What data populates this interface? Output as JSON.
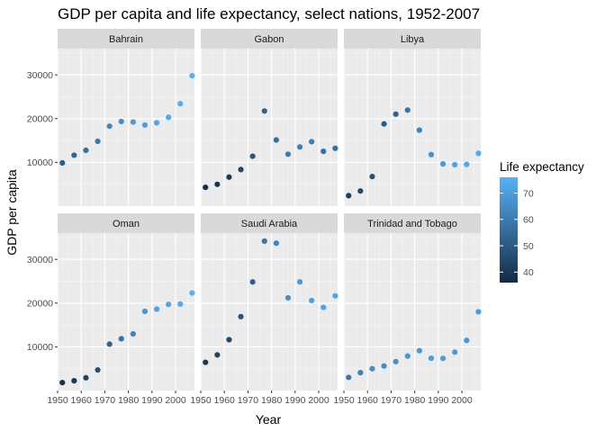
{
  "chart_data": {
    "type": "scatter",
    "title": "GDP per capita and life expectancy, select nations, 1952-2007",
    "xlabel": "Year",
    "ylabel": "GDP per capita",
    "xlim": [
      1950,
      2008
    ],
    "ylim": [
      0,
      36000
    ],
    "x_ticks": [
      1950,
      1960,
      1970,
      1980,
      1990,
      2000
    ],
    "x_tick_labels": [
      "1950",
      "1960",
      "1970",
      "1980",
      "1990",
      "2000"
    ],
    "y_ticks": [
      10000,
      20000,
      30000
    ],
    "y_tick_labels": [
      "10000",
      "20000",
      "30000"
    ],
    "grid": true,
    "facet_rows": 2,
    "facet_cols": 3,
    "color_scale": {
      "title": "Life expectancy",
      "min": 36,
      "max": 76,
      "low_color": "#132B43",
      "high_color": "#56B1F7",
      "ticks": [
        40,
        50,
        60,
        70
      ],
      "tick_labels": [
        "40",
        "50",
        "60",
        "70"
      ],
      "position": "right"
    },
    "years": [
      1952,
      1957,
      1962,
      1967,
      1972,
      1977,
      1982,
      1987,
      1992,
      1997,
      2002,
      2007
    ],
    "panels": [
      {
        "name": "Bahrain",
        "gdp": [
          9867,
          11636,
          12753,
          14805,
          18269,
          19340,
          19211,
          18524,
          19036,
          20292,
          23404,
          29796
        ],
        "life_expectancy": [
          50.9,
          53.8,
          56.9,
          59.9,
          63.3,
          65.6,
          69.1,
          70.8,
          72.6,
          73.9,
          74.8,
          75.6
        ]
      },
      {
        "name": "Gabon",
        "gdp": [
          4293,
          4976,
          6631,
          8358,
          11401,
          21746,
          15113,
          11864,
          13522,
          14723,
          12522,
          13206
        ],
        "life_expectancy": [
          37.0,
          38.9,
          40.5,
          44.6,
          48.7,
          52.8,
          56.6,
          60.2,
          61.4,
          60.5,
          56.8,
          56.7
        ]
      },
      {
        "name": "Libya",
        "gdp": [
          2388,
          3448,
          6757,
          18773,
          21011,
          21951,
          17364,
          11770,
          9641,
          9467,
          9535,
          12057
        ],
        "life_expectancy": [
          42.7,
          45.3,
          47.8,
          50.2,
          52.8,
          57.4,
          62.2,
          66.2,
          68.8,
          71.6,
          72.7,
          74.0
        ]
      },
      {
        "name": "Oman",
        "gdp": [
          1828,
          2243,
          2925,
          4721,
          10618,
          11848,
          12955,
          18115,
          18617,
          19702,
          19775,
          22316
        ],
        "life_expectancy": [
          37.6,
          40.1,
          43.2,
          46.99,
          52.1,
          57.4,
          62.7,
          67.7,
          71.2,
          72.5,
          74.2,
          75.6
        ]
      },
      {
        "name": "Saudi Arabia",
        "gdp": [
          6460,
          8157,
          11626,
          16903,
          24837,
          34168,
          33693,
          21199,
          24841,
          20586,
          19014,
          21655
        ],
        "life_expectancy": [
          39.9,
          42.9,
          45.3,
          48.2,
          52.2,
          58.7,
          63.0,
          66.3,
          68.8,
          70.5,
          71.6,
          72.8
        ]
      },
      {
        "name": "Trinidad and Tobago",
        "gdp": [
          3023,
          4100,
          4997,
          5621,
          6619,
          7899,
          9119,
          7388,
          7370,
          8793,
          11461,
          18009
        ],
        "life_expectancy": [
          59.1,
          61.8,
          64.9,
          65.4,
          65.9,
          68.3,
          68.8,
          69.6,
          69.9,
          69.5,
          68.98,
          69.8
        ]
      }
    ]
  }
}
